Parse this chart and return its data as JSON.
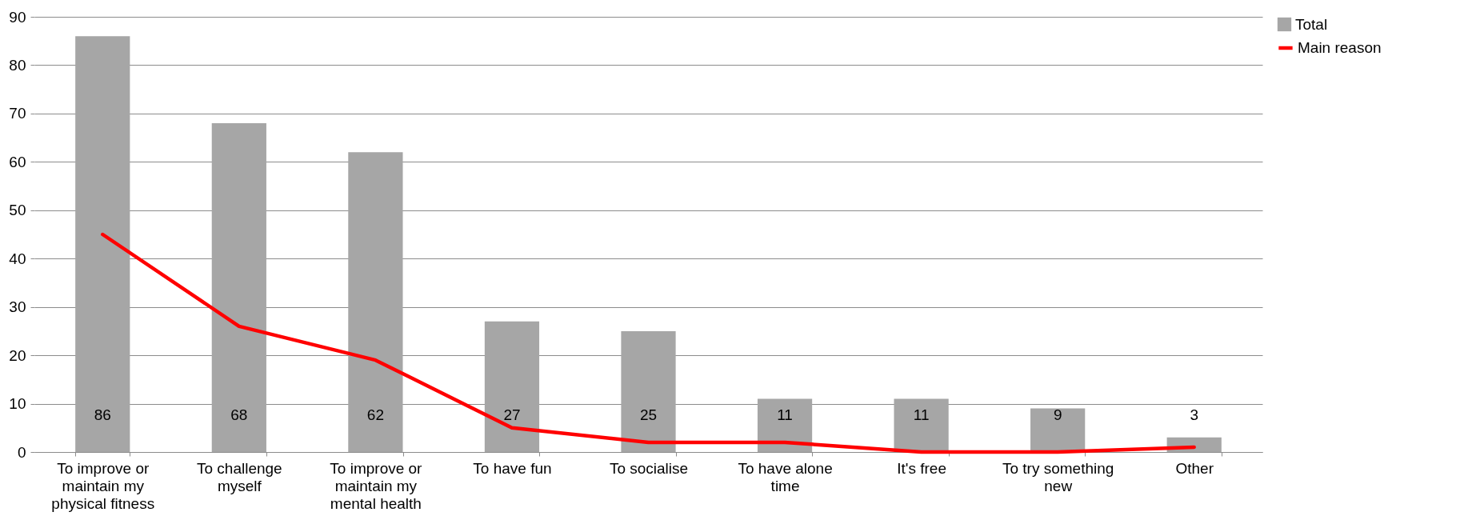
{
  "chart_data": {
    "type": "bar",
    "categories": [
      "To improve or maintain my physical fitness",
      "To challenge myself",
      "To improve or maintain my mental health",
      "To have fun",
      "To socialise",
      "To have alone time",
      "It's free",
      "To try something new",
      "Other"
    ],
    "series": [
      {
        "name": "Total",
        "color": "#a6a6a6",
        "values": [
          86,
          68,
          62,
          27,
          25,
          11,
          11,
          9,
          3
        ],
        "value_labels": [
          "86",
          "68",
          "62",
          "27",
          "25",
          "11",
          "11",
          "9",
          "3"
        ]
      },
      {
        "name": "Main reason",
        "type": "line",
        "color": "#ff0000",
        "values": [
          45,
          26,
          19,
          5,
          2,
          2,
          0,
          0,
          1
        ]
      }
    ],
    "ylim": [
      0,
      90
    ],
    "yticks": [
      0,
      10,
      20,
      30,
      40,
      50,
      60,
      70,
      80,
      90
    ],
    "grid": "y",
    "legend": "top right",
    "marker": "none"
  }
}
